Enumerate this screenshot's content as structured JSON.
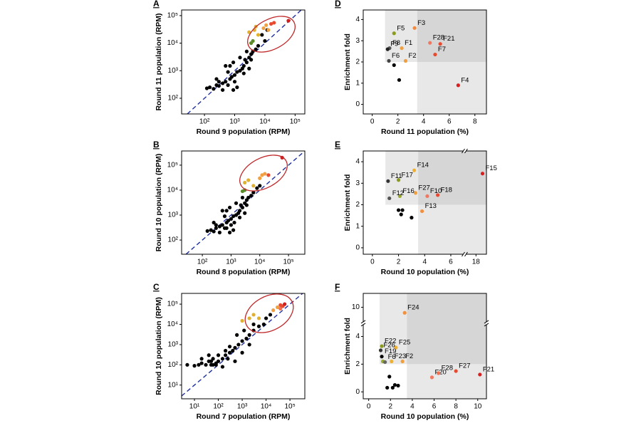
{
  "chart_data": [
    {
      "panel": "A",
      "type": "scatter",
      "xlabel": "Round 9 population (RPM)",
      "ylabel": "Round 11 population (RPM)",
      "log": true,
      "diagonal": true,
      "xlim": [
        17.5,
        210000
      ],
      "ylim": [
        27,
        160000
      ],
      "xticks": [
        {
          "value": 100,
          "label": "10²"
        },
        {
          "value": 1000,
          "label": "10³"
        },
        {
          "value": 10000,
          "label": "10⁴"
        },
        {
          "value": 100000,
          "label": "10⁵"
        }
      ],
      "yticks": [
        {
          "value": 100,
          "label": "10²"
        },
        {
          "value": 1000,
          "label": "10³"
        },
        {
          "value": 10000,
          "label": "10⁴"
        },
        {
          "value": 100000,
          "label": "10⁵"
        }
      ],
      "series": [
        {
          "color": "#000000",
          "x": [
            120,
            150,
            200,
            250,
            300,
            400,
            500,
            600,
            700,
            800,
            1000,
            1200,
            1500,
            2000,
            2500,
            3000,
            3500,
            4000,
            5000,
            6000,
            700,
            900,
            1500,
            1200,
            900,
            1000,
            2000,
            3000,
            500,
            400,
            300,
            2500,
            8000,
            10000,
            12000,
            3500,
            1800,
            600,
            250,
            2200
          ],
          "values": [
            230,
            250,
            220,
            300,
            280,
            350,
            400,
            300,
            500,
            600,
            700,
            900,
            1000,
            1500,
            2000,
            3000,
            2500,
            5000,
            6000,
            8000,
            1500,
            2000,
            3000,
            250,
            200,
            400,
            800,
            1200,
            1500,
            200,
            400,
            5000,
            20000,
            12000,
            30000,
            4000,
            1200,
            900,
            500,
            2500
          ]
        },
        {
          "colors": [
            "#5a8a2a",
            "#5a8a2a",
            "#e0b030",
            "#e0b030",
            "#e0b030",
            "#e0b030",
            "#f0a040",
            "#f0a040",
            "#f0a040",
            "#e84a30",
            "#e84a30",
            "#d02020"
          ],
          "x": [
            4000,
            3500,
            3000,
            4500,
            6000,
            5000,
            9000,
            11000,
            13000,
            16000,
            20000,
            60000
          ],
          "values": [
            12000,
            10000,
            25000,
            30000,
            20000,
            40000,
            35000,
            45000,
            30000,
            50000,
            55000,
            65000
          ]
        }
      ]
    },
    {
      "panel": "D",
      "type": "scatter",
      "xlabel": "Round 11 population (%)",
      "ylabel": "Enrichment fold",
      "xlim": [
        -0.7,
        8.9
      ],
      "ylim": [
        -0.45,
        4.45
      ],
      "xticks": [
        0,
        2,
        4,
        6,
        8
      ],
      "yticks": [
        0,
        1,
        2,
        3,
        4
      ],
      "shading": {
        "x_min": 1,
        "x_split": 3.5,
        "y_split": 2
      },
      "series": [
        {
          "colors": [
            "#f08a40",
            "#8c9a1e",
            "#f07860",
            "#e84a30",
            "#555555",
            "#222222",
            "#f0a040",
            "#e84a30",
            "#444444",
            "#f0a040",
            "#000000",
            "#000000",
            "#d82020"
          ],
          "labels": [
            "F3",
            "F5",
            "F28",
            "F21",
            "F8",
            "F9",
            "F1",
            "F7",
            "F6",
            "F2",
            null,
            null,
            "F4"
          ],
          "x": [
            3.3,
            1.7,
            4.5,
            5.3,
            1.35,
            1.2,
            2.3,
            4.9,
            1.3,
            2.6,
            1.7,
            2.1,
            6.7
          ],
          "values": [
            3.6,
            3.35,
            2.9,
            2.85,
            2.65,
            2.6,
            2.65,
            2.35,
            2.05,
            2.05,
            1.85,
            1.15,
            0.9
          ]
        }
      ]
    },
    {
      "panel": "B",
      "type": "scatter",
      "xlabel": "Round 8 population (RPM)",
      "ylabel": "Round 10 population (RPM)",
      "log": true,
      "diagonal": true,
      "xlim": [
        19,
        370000
      ],
      "ylim": [
        27,
        370000
      ],
      "xticks": [
        {
          "value": 100,
          "label": "10²"
        },
        {
          "value": 1000,
          "label": "10³"
        },
        {
          "value": 10000,
          "label": "10⁴"
        },
        {
          "value": 100000,
          "label": "10⁵"
        }
      ],
      "yticks": [
        {
          "value": 100,
          "label": "10²"
        },
        {
          "value": 1000,
          "label": "10³"
        },
        {
          "value": 10000,
          "label": "10⁴"
        },
        {
          "value": 100000,
          "label": "10⁵"
        }
      ],
      "series": [
        {
          "color": "#000000",
          "x": [
            150,
            200,
            250,
            300,
            400,
            500,
            600,
            700,
            800,
            1000,
            1200,
            1500,
            2000,
            2500,
            3000,
            3500,
            4000,
            5000,
            6000,
            700,
            900,
            1500,
            1200,
            900,
            1000,
            2000,
            3000,
            500,
            400,
            300,
            2500,
            8000,
            10000,
            3500,
            1800,
            600,
            250,
            2200,
            1300,
            700
          ],
          "values": [
            230,
            250,
            220,
            300,
            350,
            400,
            300,
            500,
            600,
            700,
            900,
            1000,
            1500,
            2000,
            3000,
            2500,
            5000,
            6000,
            8000,
            1500,
            2000,
            3000,
            250,
            200,
            400,
            800,
            1200,
            1500,
            200,
            400,
            5000,
            12000,
            15000,
            4000,
            1200,
            900,
            500,
            2500,
            500,
            300
          ]
        },
        {
          "colors": [
            "#5a8a2a",
            "#5a8a2a",
            "#e0b030",
            "#e0b030",
            "#e0b030",
            "#f0a040",
            "#f0a040",
            "#f0a040",
            "#e84a30",
            "#d02020"
          ],
          "x": [
            3000,
            2500,
            3000,
            6000,
            4000,
            12000,
            15000,
            10000,
            20000,
            60000
          ],
          "values": [
            10000,
            9000,
            20000,
            15000,
            25000,
            40000,
            45000,
            30000,
            40000,
            200000
          ]
        }
      ]
    },
    {
      "panel": "E",
      "type": "scatter",
      "xlabel": "Round 10 population (%)",
      "ylabel": "Enrichment fold",
      "xlim": [
        -0.7,
        18.8
      ],
      "xbreak": [
        6.9,
        17.3
      ],
      "ylim": [
        -0.3,
        4.5
      ],
      "xticks": [
        0,
        2,
        4,
        6,
        18
      ],
      "yticks": [
        0,
        1,
        2,
        3,
        4
      ],
      "shading": {
        "x_min": 1,
        "x_split": 3.5,
        "y_split": 2
      },
      "series": [
        {
          "colors": [
            "#d82020",
            "#f0b030",
            "#333333",
            "#8c9a1e",
            "#f0a040",
            "#9aaa2a",
            "#f07860",
            "#e84a30",
            "#555555",
            "#f09040",
            "#000000",
            "#000000",
            "#000000",
            "#000000"
          ],
          "labels": [
            "F15",
            "F14",
            "F11",
            "F17",
            "F27",
            "F16",
            "F10",
            "F18",
            "F12",
            "F13",
            null,
            null,
            null,
            null
          ],
          "x": [
            18.5,
            3.2,
            1.2,
            2,
            3.3,
            2.1,
            4.2,
            5,
            1.3,
            3.8,
            2,
            2.3,
            2.2,
            3
          ],
          "values": [
            3.45,
            3.6,
            3.1,
            3.15,
            2.55,
            2.4,
            2.4,
            2.45,
            2.3,
            1.7,
            1.75,
            1.75,
            1.55,
            1.4
          ]
        }
      ]
    },
    {
      "panel": "C",
      "type": "scatter",
      "xlabel": "Round 7 population (RPM)",
      "ylabel": "Round 10 population (RPM)",
      "log": true,
      "diagonal": true,
      "xlim": [
        2.9,
        420000
      ],
      "ylim": [
        2.1,
        340000
      ],
      "xticks": [
        {
          "value": 10,
          "label": "10¹"
        },
        {
          "value": 100,
          "label": "10²"
        },
        {
          "value": 1000,
          "label": "10³"
        },
        {
          "value": 10000,
          "label": "10⁴"
        },
        {
          "value": 100000,
          "label": "10⁵"
        }
      ],
      "yticks": [
        {
          "value": 10,
          "label": "10¹"
        },
        {
          "value": 100,
          "label": "10²"
        },
        {
          "value": 1000,
          "label": "10³"
        },
        {
          "value": 10000,
          "label": "10⁴"
        },
        {
          "value": 100000,
          "label": "10⁵"
        }
      ],
      "series": [
        {
          "color": "#000000",
          "x": [
            5,
            10,
            15,
            20,
            30,
            40,
            50,
            60,
            80,
            100,
            150,
            200,
            300,
            400,
            500,
            700,
            1000,
            1500,
            2000,
            3000,
            5000,
            8000,
            10000,
            20,
            40,
            60,
            100,
            200,
            300,
            500,
            1000,
            2000,
            150,
            80,
            50,
            600,
            1200,
            3000,
            15000,
            250
          ],
          "values": [
            100,
            90,
            100,
            120,
            100,
            150,
            100,
            200,
            120,
            150,
            200,
            300,
            400,
            500,
            700,
            1000,
            1500,
            2000,
            3000,
            5000,
            8000,
            10000,
            20000,
            200,
            300,
            100,
            300,
            500,
            800,
            150,
            400,
            1000,
            80,
            100,
            150,
            3000,
            5000,
            10000,
            30000,
            200
          ]
        },
        {
          "colors": [
            "#e0b030",
            "#e0b030",
            "#e0b030",
            "#e0b030",
            "#f0a040",
            "#f0a040",
            "#f07050",
            "#e84a30",
            "#d02020",
            "#e84a30"
          ],
          "x": [
            2000,
            3000,
            5000,
            1000,
            20000,
            30000,
            40000,
            50000,
            60000,
            40000
          ],
          "values": [
            20000,
            30000,
            20000,
            15000,
            50000,
            70000,
            60000,
            80000,
            100000,
            90000
          ]
        }
      ]
    },
    {
      "panel": "F",
      "type": "scatter",
      "xlabel": "Round 10 population (%)",
      "ylabel": "Enrichment fold",
      "xlim": [
        -0.5,
        10.8
      ],
      "ylim": [
        -0.5,
        11
      ],
      "ybreak": [
        4.8,
        9
      ],
      "xticks": [
        0,
        2,
        4,
        6,
        8,
        10
      ],
      "yticks": [
        0,
        2,
        4,
        10
      ],
      "shading": {
        "x_min": 1,
        "x_split": 3.5,
        "y_split": 2
      },
      "series": [
        {
          "colors": [
            "#f09040",
            "#8c9a1e",
            "#f0b030",
            "#333333",
            "#000000",
            "#9aaa2a",
            "#f0b030",
            "#f0a040",
            "#666666",
            "#f07860",
            "#f07050",
            "#e84a30",
            "#d82020",
            "#000000",
            "#000000",
            "#000000",
            "#000000",
            "#000000"
          ],
          "labels": [
            "F24",
            "F22",
            "F25",
            "F26",
            "F19",
            null,
            "F23",
            "F2",
            "F6",
            "F20",
            "F28",
            "F27",
            "F21",
            null,
            null,
            null,
            null,
            null
          ],
          "x": [
            3.3,
            1.2,
            2.5,
            1.1,
            1.2,
            1.3,
            2.1,
            3.1,
            1.5,
            5.8,
            6.4,
            8,
            10.2,
            1.9,
            1.7,
            2.4,
            2.7,
            2.2
          ],
          "values": [
            9.6,
            3.3,
            3.2,
            3.0,
            2.55,
            2.2,
            2.2,
            2.2,
            2.15,
            1.05,
            1.35,
            1.5,
            1.25,
            1.1,
            0.3,
            0.5,
            0.45,
            0.3
          ]
        }
      ]
    }
  ]
}
